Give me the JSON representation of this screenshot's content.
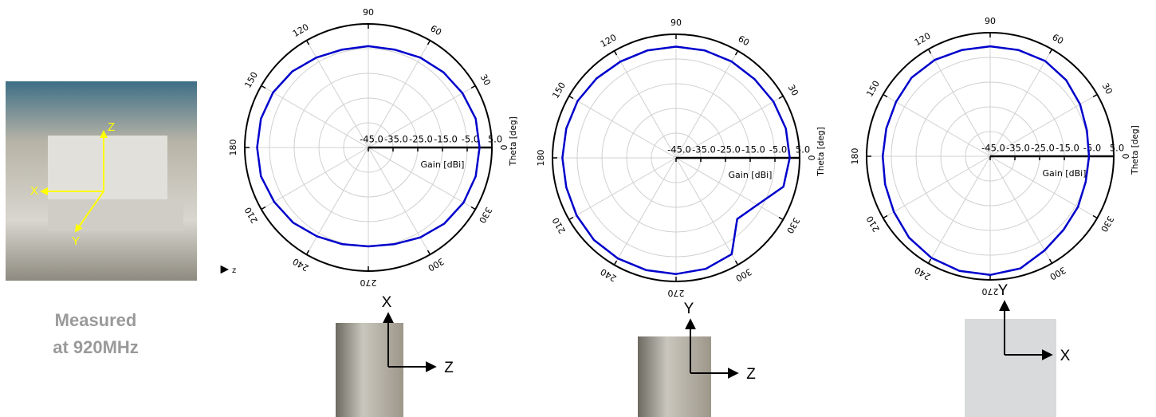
{
  "caption": [
    "Measured",
    "at 920MHz"
  ],
  "photo_axes": [
    "Z",
    "X",
    "Y"
  ],
  "small_axis": "z",
  "orientation_axes": [
    {
      "up": "X",
      "right": "Z"
    },
    {
      "up": "Y",
      "right": "Z"
    },
    {
      "up": "Y",
      "right": "X"
    }
  ],
  "chart_data": [
    {
      "type": "polar",
      "color": "#0000cc",
      "r_label": "Gain [dBi]",
      "theta_label": "Theta [deg]",
      "rlim": [
        -45,
        5
      ],
      "rticks": [
        {
          "value": -45,
          "label": "-45.0"
        },
        {
          "value": -35,
          "label": "-35.0"
        },
        {
          "value": -25,
          "label": "-25.0"
        },
        {
          "value": -15,
          "label": "-15.0"
        },
        {
          "value": -5,
          "label": "-5.0"
        },
        {
          "value": 5,
          "label": "5.0"
        }
      ],
      "thetaticks": [
        0,
        30,
        60,
        90,
        120,
        150,
        180,
        210,
        240,
        270,
        300,
        330
      ],
      "theta": [
        0,
        15,
        30,
        45,
        60,
        75,
        90,
        105,
        120,
        135,
        150,
        165,
        180,
        195,
        210,
        225,
        240,
        255,
        270,
        285,
        300,
        315,
        330,
        345
      ],
      "values": [
        0,
        0,
        -1,
        -2,
        -3,
        -4,
        -4,
        -4,
        -3,
        -1.5,
        -0.5,
        0,
        0,
        0,
        -1,
        -2,
        -3.5,
        -4.5,
        -5,
        -4.5,
        -3,
        -1.5,
        -0.5,
        0
      ]
    },
    {
      "type": "polar",
      "color": "#0000cc",
      "r_label": "Gain [dBi]",
      "theta_label": "Theta [deg]",
      "rlim": [
        -45,
        5
      ],
      "rticks": [
        {
          "value": -45,
          "label": "-45.0"
        },
        {
          "value": -35,
          "label": "-35.0"
        },
        {
          "value": -25,
          "label": "-25.0"
        },
        {
          "value": -15,
          "label": "-15.0"
        },
        {
          "value": -5,
          "label": "-5.0"
        },
        {
          "value": 5,
          "label": "5.0"
        }
      ],
      "thetaticks": [
        0,
        30,
        60,
        90,
        120,
        150,
        180,
        210,
        240,
        270,
        300,
        330
      ],
      "theta": [
        0,
        15,
        30,
        45,
        60,
        75,
        90,
        105,
        120,
        135,
        150,
        165,
        180,
        195,
        210,
        225,
        240,
        255,
        270,
        285,
        300,
        315,
        330,
        345
      ],
      "values": [
        1,
        1,
        0.5,
        0,
        0,
        0,
        0,
        0,
        0,
        0.5,
        1,
        1,
        1,
        1,
        1.5,
        2,
        2,
        2,
        2,
        1.5,
        0,
        -10,
        -7,
        0
      ]
    },
    {
      "type": "polar",
      "color": "#0000cc",
      "r_label": "Gain [dBi]",
      "theta_label": "Theta [deg]",
      "rlim": [
        -45,
        5
      ],
      "rticks": [
        {
          "value": -45,
          "label": "-45.0"
        },
        {
          "value": -35,
          "label": "-35.0"
        },
        {
          "value": -25,
          "label": "-25.0"
        },
        {
          "value": -15,
          "label": "-15.0"
        },
        {
          "value": -5,
          "label": "-5.0"
        },
        {
          "value": 5,
          "label": "5.0"
        }
      ],
      "thetaticks": [
        0,
        30,
        60,
        90,
        120,
        150,
        180,
        210,
        240,
        270,
        300,
        330
      ],
      "theta": [
        0,
        15,
        30,
        45,
        60,
        75,
        90,
        105,
        120,
        135,
        150,
        165,
        180,
        195,
        210,
        225,
        240,
        255,
        270,
        285,
        300,
        315,
        330,
        345
      ],
      "values": [
        -5,
        -4.5,
        -3,
        -1.5,
        -0.5,
        -0.5,
        -0.5,
        -0.5,
        0,
        0,
        -1,
        -1.5,
        -1.5,
        -1,
        0,
        1.5,
        2.5,
        3,
        3,
        2,
        -1,
        -3,
        -4,
        -5
      ]
    }
  ]
}
